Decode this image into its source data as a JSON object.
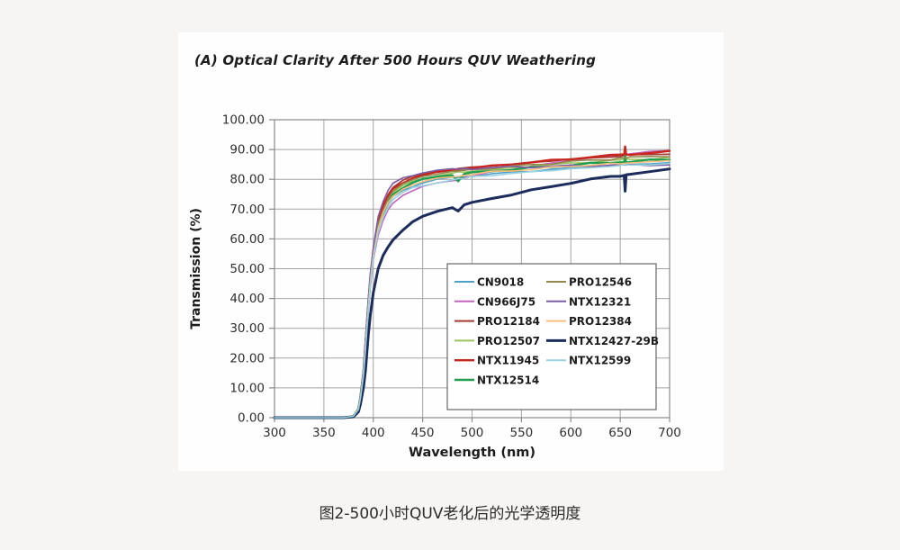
{
  "page": {
    "caption": "图2-500小时QUV老化后的光学透明度",
    "background_color": "#f7f5f3"
  },
  "figure": {
    "title": "(A) Optical Clarity After 500 Hours QUV Weathering"
  },
  "chart_data": {
    "type": "line",
    "title": "(A) Optical Clarity After 500 Hours QUV Weathering",
    "xlabel": "Wavelength (nm)",
    "ylabel": "Transmission (%)",
    "xlim": [
      300,
      700
    ],
    "ylim": [
      0,
      100
    ],
    "x_ticks": [
      300,
      350,
      400,
      450,
      500,
      550,
      600,
      650,
      700
    ],
    "y_ticks": [
      0,
      10,
      20,
      30,
      40,
      50,
      60,
      70,
      80,
      90,
      100
    ],
    "y_tick_decimals": 2,
    "grid": true,
    "grid_color": "#a3a3a3",
    "legend_position": "inside-lower-right",
    "legend_columns": 2,
    "legend_column_break": 6,
    "x": [
      300,
      350,
      370,
      380,
      385,
      387,
      390,
      392,
      395,
      397,
      400,
      405,
      410,
      415,
      420,
      430,
      440,
      450,
      465,
      480,
      486,
      492,
      500,
      520,
      540,
      560,
      580,
      600,
      620,
      640,
      650,
      654,
      655,
      656,
      660,
      680,
      700
    ],
    "series": [
      {
        "name": "CN9018",
        "color": "#4C9FC8",
        "width": 1.6,
        "values": [
          0,
          0,
          0,
          0.5,
          3,
          6.7,
          14.5,
          23,
          37,
          45.3,
          54,
          63,
          68,
          71.5,
          74,
          76.3,
          77.8,
          78.8,
          79.8,
          80.5,
          80.7,
          80.9,
          81.2,
          81.8,
          82.3,
          82.8,
          83.3,
          83.8,
          84.2,
          84.6,
          84.8,
          84.9,
          84.9,
          84.9,
          85,
          85.2,
          85.5
        ]
      },
      {
        "name": "CN966J75",
        "color": "#C465BD",
        "width": 1.6,
        "values": [
          0,
          0,
          0,
          0.5,
          2.8,
          6.3,
          14,
          22,
          36,
          44,
          53,
          61.2,
          66.2,
          69.7,
          72.2,
          74.7,
          76.3,
          77.5,
          78.7,
          79.7,
          80.1,
          80.5,
          81.2,
          82.4,
          83.4,
          84.4,
          85.4,
          86.3,
          87.1,
          87.9,
          88.3,
          88.4,
          88.5,
          88.5,
          88.6,
          89.2,
          89.8
        ]
      },
      {
        "name": "PRO12184",
        "color": "#A43B32",
        "width": 1.8,
        "values": [
          0,
          0,
          0,
          0.5,
          3,
          7.2,
          15.5,
          25,
          39,
          47.5,
          56.5,
          66.5,
          71.5,
          75,
          77.5,
          79.5,
          80.8,
          81.8,
          82.7,
          83.3,
          83.5,
          83.6,
          83.9,
          84.5,
          85.1,
          85.6,
          86.2,
          86.7,
          87.2,
          87.6,
          87.9,
          88,
          88,
          88,
          88.1,
          88.4,
          88.6
        ]
      },
      {
        "name": "PRO12507",
        "color": "#9DC45F",
        "width": 1.6,
        "values": [
          0,
          0,
          0,
          0.5,
          3,
          7,
          15,
          24,
          38,
          46.5,
          55.2,
          64.5,
          69.5,
          73,
          75.5,
          77.8,
          79.3,
          80.3,
          81.3,
          82,
          82.2,
          82.4,
          82.7,
          83.3,
          83.8,
          84.4,
          84.9,
          85.4,
          85.8,
          86.2,
          86.4,
          86.5,
          86.5,
          86.5,
          86.6,
          86.9,
          87.2
        ]
      },
      {
        "name": "NTX11945",
        "color": "#C9251E",
        "width": 2.4,
        "values": [
          0,
          0,
          0,
          0.5,
          3,
          7,
          15,
          24.5,
          38.5,
          47,
          56,
          65.8,
          70.8,
          74.2,
          76.8,
          79,
          80.4,
          81.4,
          82.4,
          83.1,
          83.3,
          83.5,
          83.8,
          84.5,
          85.1,
          85.7,
          86.3,
          86.9,
          87.4,
          87.9,
          88.2,
          88.3,
          91,
          88.4,
          88.5,
          88.8,
          89.2
        ]
      },
      {
        "name": "NTX12514",
        "color": "#1E9E4E",
        "width": 2.4,
        "values": [
          0,
          0,
          0,
          0.5,
          3,
          7,
          15,
          24,
          38,
          46,
          55,
          64,
          69,
          72.5,
          75,
          77.3,
          78.8,
          79.8,
          80.8,
          81.5,
          79.5,
          81.9,
          82.2,
          82.8,
          83.3,
          83.8,
          84.3,
          84.8,
          85.2,
          85.6,
          85.8,
          85.9,
          88,
          85.9,
          86,
          86.3,
          86.6
        ]
      },
      {
        "name": "PRO12546",
        "color": "#94894F",
        "width": 1.6,
        "values": [
          0,
          0,
          0,
          0.5,
          3,
          7,
          15,
          24.3,
          38,
          46.8,
          55.5,
          65,
          70,
          73.5,
          76,
          78.3,
          79.8,
          80.8,
          81.8,
          82.5,
          82.7,
          82.9,
          83.2,
          83.8,
          84.3,
          84.9,
          85.4,
          85.9,
          86.4,
          86.8,
          87.1,
          87.2,
          87.2,
          87.2,
          87.3,
          87.6,
          87.8
        ]
      },
      {
        "name": "NTX12321",
        "color": "#7C5CA6",
        "width": 1.6,
        "values": [
          0,
          0,
          0,
          0.5,
          3,
          7.5,
          16,
          26,
          40,
          48.5,
          57,
          67.5,
          72.5,
          76,
          78.5,
          80.3,
          81.5,
          82.3,
          83,
          83.3,
          83.4,
          83.5,
          83.6,
          83.9,
          84.1,
          84.2,
          84.4,
          84.5,
          84.6,
          84.7,
          84.7,
          84.8,
          84.8,
          84.8,
          84.8,
          84.8,
          84.8
        ]
      },
      {
        "name": "PRO12384",
        "color": "#F8BE7E",
        "width": 1.6,
        "values": [
          0,
          0,
          0,
          0.5,
          3,
          6.8,
          14.5,
          23.5,
          37.5,
          45.8,
          54.5,
          63.5,
          68.5,
          72,
          74.5,
          76.8,
          78.3,
          79.3,
          80.3,
          81,
          81.2,
          81.4,
          81.8,
          82.4,
          82.9,
          83.4,
          83.9,
          84.4,
          84.8,
          85.2,
          85.4,
          85.5,
          85.5,
          85.5,
          85.6,
          85.9,
          86.2
        ]
      },
      {
        "name": "NTX12427-29B",
        "color": "#1C2C5D",
        "width": 3,
        "values": [
          0,
          0,
          0,
          0.3,
          2,
          4.5,
          10,
          15.5,
          28,
          34.5,
          42,
          50,
          54.5,
          57.5,
          60,
          63,
          65.5,
          67.5,
          69.5,
          70.8,
          69.3,
          71.4,
          72,
          73.5,
          75,
          76.3,
          77.5,
          78.8,
          80,
          81,
          81.3,
          81.4,
          76,
          81.5,
          81.7,
          82.5,
          83.6
        ]
      },
      {
        "name": "NTX12599",
        "color": "#9AD2DD",
        "width": 1.6,
        "values": [
          0,
          0,
          0,
          0.5,
          2.8,
          6.5,
          14,
          22.5,
          36.5,
          44.8,
          53.5,
          62.2,
          67.2,
          70.7,
          73.2,
          75.5,
          77,
          78,
          79,
          79.7,
          79.9,
          80.1,
          80.8,
          81.4,
          81.9,
          82.5,
          83,
          83.5,
          83.9,
          84.3,
          84.5,
          84.6,
          84.6,
          84.6,
          84.7,
          85,
          85.2
        ]
      }
    ]
  }
}
